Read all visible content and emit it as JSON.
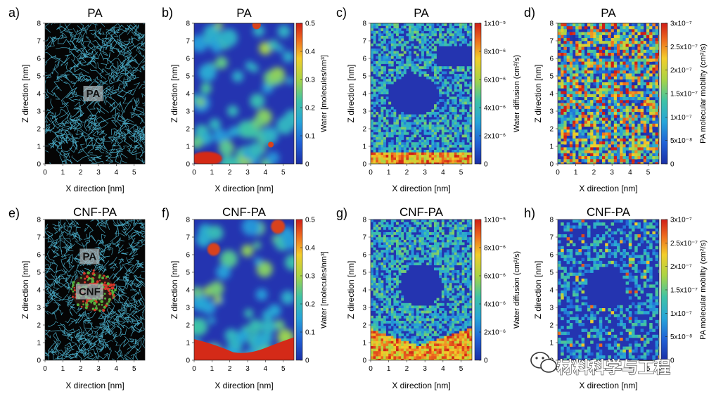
{
  "watermark": "材料科学与工程",
  "axis_labels": {
    "x": "X direction [nm]",
    "z": "Z direction [nm]"
  },
  "colors": {
    "pa_fibers": "#4fb8d6",
    "cnf_red": "#d8372a",
    "cnf_green": "#55b13c"
  },
  "chart_data": [
    {
      "id": "a",
      "letter": "a)",
      "title": "PA",
      "type": "snapshot",
      "inset_labels": [
        "PA"
      ],
      "x_ticks": [
        "0",
        "1",
        "2",
        "3",
        "4",
        "5"
      ],
      "z_ticks": [
        "0",
        "1",
        "2",
        "3",
        "4",
        "5",
        "6",
        "7",
        "8"
      ],
      "xlim": [
        0,
        5.6
      ],
      "zlim": [
        0,
        8
      ]
    },
    {
      "id": "b",
      "letter": "b)",
      "title": "PA",
      "type": "heatmap",
      "colorbar_label": "Water [molecules/nm³]",
      "colorbar_ticks": [
        "0",
        "0.1",
        "0.2",
        "0.3",
        "0.4",
        "0.5"
      ],
      "x_ticks": [
        "0",
        "1",
        "2",
        "3",
        "4",
        "5"
      ],
      "z_ticks": [
        "0",
        "1",
        "2",
        "3",
        "4",
        "5",
        "6",
        "7",
        "8"
      ],
      "xlim": [
        0,
        5.6
      ],
      "zlim": [
        0,
        8
      ],
      "vrange": [
        0,
        0.5
      ]
    },
    {
      "id": "c",
      "letter": "c)",
      "title": "PA",
      "type": "heatmap",
      "colorbar_label": "Water diffusion (cm²/s)",
      "colorbar_ticks": [
        "0",
        "2x10⁻⁶",
        "4x10⁻⁶",
        "6x10⁻⁶",
        "8x10⁻⁶",
        "1x10⁻⁵"
      ],
      "x_ticks": [
        "0",
        "1",
        "2",
        "3",
        "4",
        "5"
      ],
      "z_ticks": [
        "0",
        "1",
        "2",
        "3",
        "4",
        "5",
        "6",
        "7",
        "8"
      ],
      "xlim": [
        0,
        5.6
      ],
      "zlim": [
        0,
        8
      ],
      "vrange": [
        0,
        1e-05
      ]
    },
    {
      "id": "d",
      "letter": "d)",
      "title": "PA",
      "type": "heatmap",
      "colorbar_label": "PA molecular mobility (cm²/s)",
      "colorbar_ticks": [
        "0",
        "5x10⁻⁸",
        "1x10⁻⁷",
        "1.5x10⁻⁷",
        "2x10⁻⁷",
        "2.5x10⁻⁷",
        "3x10⁻⁷"
      ],
      "x_ticks": [
        "0",
        "1",
        "2",
        "3",
        "4",
        "5"
      ],
      "z_ticks": [
        "0",
        "1",
        "2",
        "3",
        "4",
        "5",
        "6",
        "7",
        "8"
      ],
      "xlim": [
        0,
        5.6
      ],
      "zlim": [
        0,
        8
      ],
      "vrange": [
        0,
        3e-07
      ]
    },
    {
      "id": "e",
      "letter": "e)",
      "title": "CNF-PA",
      "type": "snapshot",
      "inset_labels": [
        "PA",
        "CNF"
      ],
      "x_ticks": [
        "0",
        "1",
        "2",
        "3",
        "4",
        "5"
      ],
      "z_ticks": [
        "0",
        "1",
        "2",
        "3",
        "4",
        "5",
        "6",
        "7",
        "8"
      ],
      "xlim": [
        0,
        5.6
      ],
      "zlim": [
        0,
        8
      ]
    },
    {
      "id": "f",
      "letter": "f)",
      "title": "CNF-PA",
      "type": "heatmap",
      "colorbar_label": "Water [molecules/nm³]",
      "colorbar_ticks": [
        "0",
        "0.1",
        "0.2",
        "0.3",
        "0.4",
        "0.5"
      ],
      "x_ticks": [
        "0",
        "1",
        "2",
        "3",
        "4",
        "5"
      ],
      "z_ticks": [
        "0",
        "1",
        "2",
        "3",
        "4",
        "5",
        "6",
        "7",
        "8"
      ],
      "xlim": [
        0,
        5.6
      ],
      "zlim": [
        0,
        8
      ],
      "vrange": [
        0,
        0.5
      ]
    },
    {
      "id": "g",
      "letter": "g)",
      "title": "CNF-PA",
      "type": "heatmap",
      "colorbar_label": "Water diffusion (cm²/s)",
      "colorbar_ticks": [
        "0",
        "2x10⁻⁶",
        "4x10⁻⁶",
        "6x10⁻⁶",
        "8x10⁻⁶",
        "1x10⁻⁵"
      ],
      "x_ticks": [
        "0",
        "1",
        "2",
        "3",
        "4",
        "5"
      ],
      "z_ticks": [
        "0",
        "1",
        "2",
        "3",
        "4",
        "5",
        "6",
        "7",
        "8"
      ],
      "xlim": [
        0,
        5.6
      ],
      "zlim": [
        0,
        8
      ],
      "vrange": [
        0,
        1e-05
      ]
    },
    {
      "id": "h",
      "letter": "h)",
      "title": "CNF-PA",
      "type": "heatmap",
      "colorbar_label": "PA molecular mobility (cm²/s)",
      "colorbar_ticks": [
        "0",
        "5x10⁻⁸",
        "1x10⁻⁷",
        "1.5x10⁻⁷",
        "2x10⁻⁷",
        "2.5x10⁻⁷",
        "3x10⁻⁷"
      ],
      "x_ticks": [
        "0",
        "1",
        "2",
        "3",
        "4",
        "5"
      ],
      "z_ticks": [
        "0",
        "1",
        "2",
        "3",
        "4",
        "5",
        "6",
        "7",
        "8"
      ],
      "xlim": [
        0,
        5.6
      ],
      "zlim": [
        0,
        8
      ],
      "vrange": [
        0,
        3e-07
      ]
    }
  ]
}
